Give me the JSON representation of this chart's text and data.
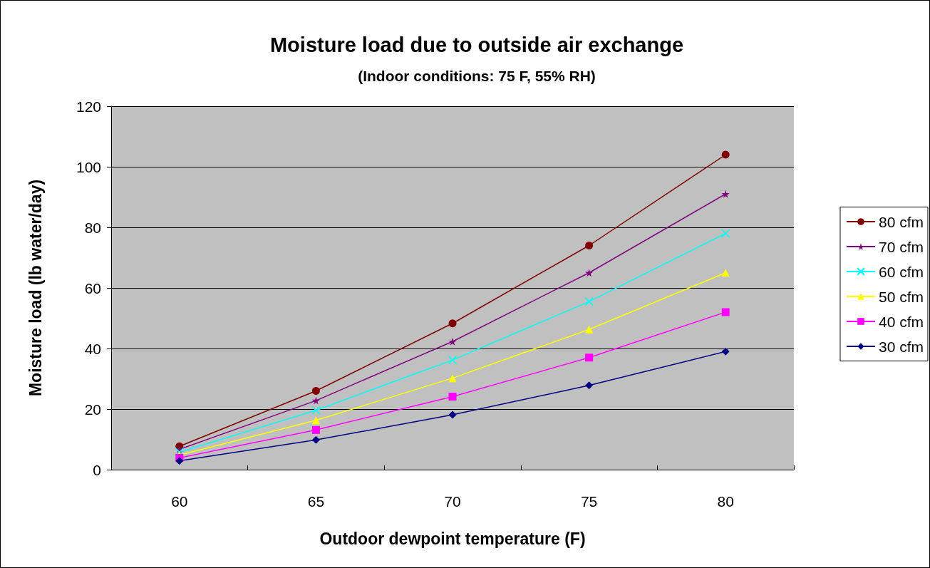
{
  "chart_data": {
    "type": "line",
    "title": "Moisture load due to outside air exchange",
    "subtitle": "(Indoor conditions: 75 F, 55% RH)",
    "xlabel": "Outdoor dewpoint temperature (F)",
    "ylabel": "Moisture load (lb water/day)",
    "categories": [
      "60",
      "65",
      "70",
      "75",
      "80"
    ],
    "series": [
      {
        "name": "80 cfm",
        "color": "#800000",
        "marker": "circle",
        "values": [
          7.7,
          26,
          48.3,
          74,
          104
        ]
      },
      {
        "name": "70 cfm",
        "color": "#800080",
        "marker": "star",
        "values": [
          6.7,
          22.8,
          42.3,
          65,
          91
        ]
      },
      {
        "name": "60 cfm",
        "color": "#00ffff",
        "marker": "cross",
        "values": [
          5.8,
          19.6,
          36.2,
          55.5,
          78
        ]
      },
      {
        "name": "50 cfm",
        "color": "#ffff00",
        "marker": "triangle",
        "values": [
          4.8,
          16.3,
          30.2,
          46.3,
          65
        ]
      },
      {
        "name": "40 cfm",
        "color": "#ff00ff",
        "marker": "square",
        "values": [
          3.9,
          13.1,
          24.1,
          37,
          52
        ]
      },
      {
        "name": "30 cfm",
        "color": "#000080",
        "marker": "diamond",
        "values": [
          2.9,
          9.8,
          18.1,
          27.8,
          39
        ]
      }
    ],
    "ylim": [
      0,
      120
    ],
    "yticks": [
      0,
      20,
      40,
      60,
      80,
      100,
      120
    ],
    "grid": "y",
    "legend": "right",
    "line_style": "solid"
  }
}
